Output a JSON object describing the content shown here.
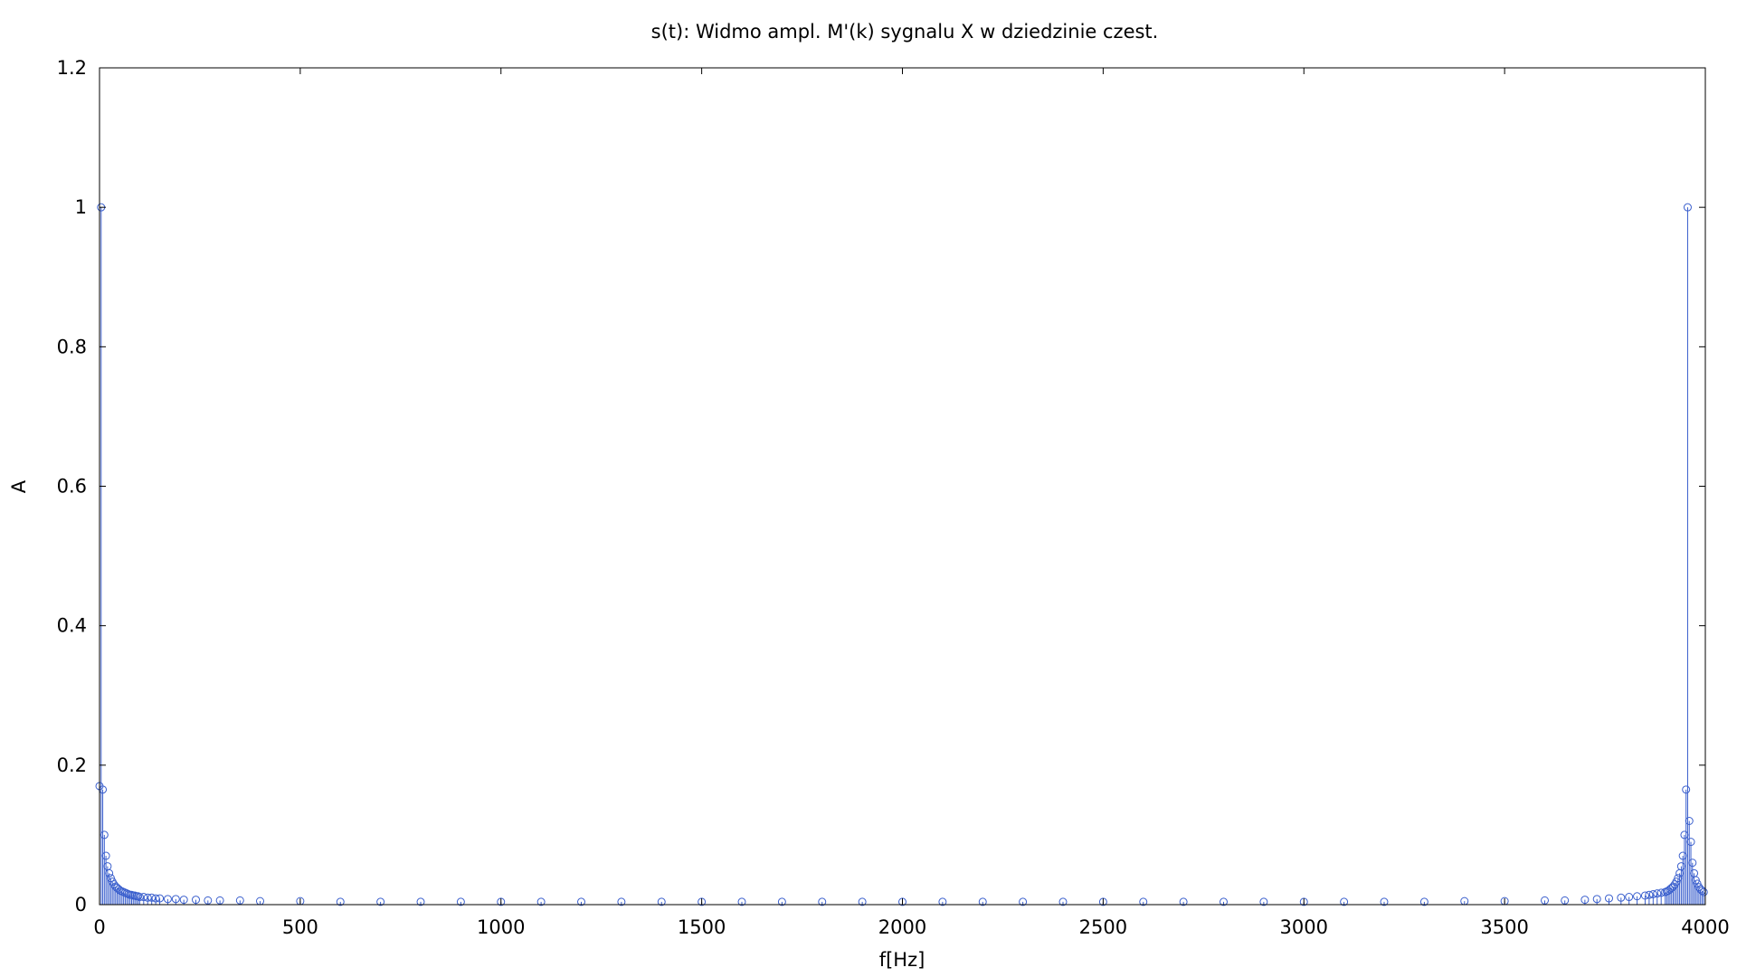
{
  "chart_data": {
    "type": "stem",
    "title": "s(t): Widmo ampl. M'(k) sygnalu X w dziedzinie czest.",
    "xlabel": "f[Hz]",
    "ylabel": "A",
    "xlim": [
      0,
      4000
    ],
    "ylim": [
      0,
      1.2
    ],
    "xticks": [
      0,
      500,
      1000,
      1500,
      2000,
      2500,
      3000,
      3500,
      4000
    ],
    "xtick_labels": [
      "0",
      "500",
      "1000",
      "1500",
      "2000",
      "2500",
      "3000",
      "3500",
      "4000"
    ],
    "yticks": [
      0,
      0.2,
      0.4,
      0.6,
      0.8,
      1.0,
      1.2
    ],
    "ytick_labels": [
      "0",
      "0.2",
      "0.4",
      "0.6",
      "0.8",
      "1",
      "1.2"
    ],
    "grid": false,
    "legend": "none",
    "marker": "circle-open",
    "color": "#3a5fcd",
    "series": [
      {
        "x": [
          0,
          4,
          8,
          12,
          16,
          20,
          24,
          28,
          32,
          36,
          40,
          44,
          48,
          52,
          56,
          60,
          64,
          68,
          72,
          76,
          80,
          84,
          88,
          92,
          96,
          100,
          110,
          120,
          130,
          140,
          150,
          170,
          190,
          210,
          240,
          270,
          300,
          350,
          400,
          500,
          600,
          700,
          800,
          900,
          1000,
          1100,
          1200,
          1300,
          1400,
          1500,
          1600,
          1700,
          1800,
          1900,
          2000,
          2100,
          2200,
          2300,
          2400,
          2500,
          2600,
          2700,
          2800,
          2900,
          3000,
          3100,
          3200,
          3300,
          3400,
          3500,
          3600,
          3650,
          3700,
          3730,
          3760,
          3790,
          3810,
          3830,
          3850,
          3860,
          3870,
          3880,
          3890,
          3900,
          3904,
          3908,
          3912,
          3916,
          3920,
          3924,
          3928,
          3932,
          3936,
          3940,
          3944,
          3948,
          3952,
          3956,
          3960,
          3964,
          3968,
          3972,
          3976,
          3980,
          3984,
          3988,
          3992,
          3996
        ],
        "y": [
          0.17,
          1.0,
          0.165,
          0.1,
          0.07,
          0.055,
          0.045,
          0.038,
          0.033,
          0.029,
          0.026,
          0.024,
          0.022,
          0.02,
          0.019,
          0.018,
          0.017,
          0.016,
          0.015,
          0.014,
          0.014,
          0.013,
          0.013,
          0.012,
          0.012,
          0.011,
          0.011,
          0.01,
          0.01,
          0.009,
          0.009,
          0.008,
          0.008,
          0.007,
          0.007,
          0.006,
          0.006,
          0.006,
          0.005,
          0.005,
          0.004,
          0.004,
          0.004,
          0.004,
          0.004,
          0.004,
          0.004,
          0.004,
          0.004,
          0.004,
          0.004,
          0.004,
          0.004,
          0.004,
          0.004,
          0.004,
          0.004,
          0.004,
          0.004,
          0.004,
          0.004,
          0.004,
          0.004,
          0.004,
          0.004,
          0.004,
          0.004,
          0.004,
          0.005,
          0.005,
          0.006,
          0.006,
          0.007,
          0.008,
          0.009,
          0.01,
          0.011,
          0.012,
          0.013,
          0.014,
          0.015,
          0.016,
          0.017,
          0.018,
          0.019,
          0.02,
          0.022,
          0.024,
          0.026,
          0.029,
          0.033,
          0.038,
          0.045,
          0.055,
          0.07,
          0.1,
          0.165,
          1.0,
          0.12,
          0.09,
          0.06,
          0.045,
          0.035,
          0.03,
          0.025,
          0.022,
          0.02,
          0.018
        ]
      }
    ]
  }
}
